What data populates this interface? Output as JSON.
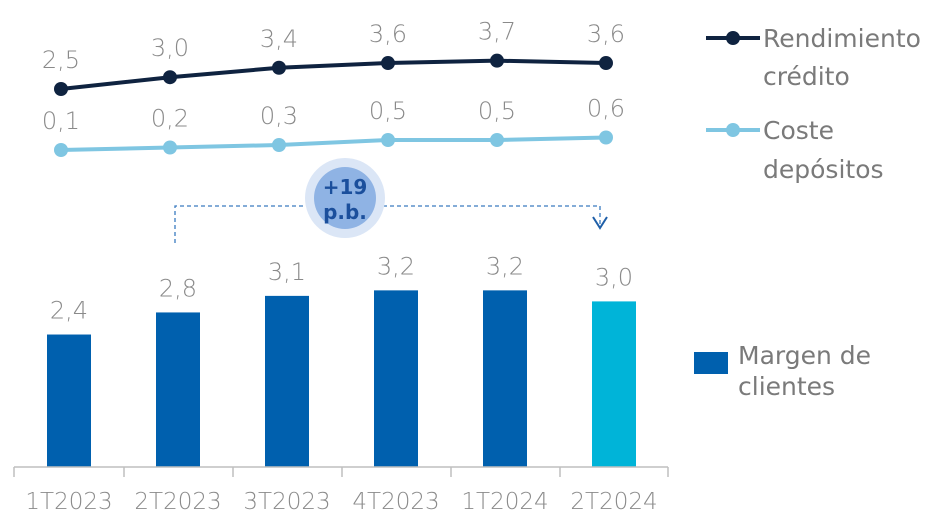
{
  "chart_data": {
    "type": "bar",
    "categories": [
      "1T2023",
      "2T2023",
      "3T2023",
      "4T2023",
      "1T2024",
      "2T2024"
    ],
    "series": [
      {
        "name": "Rendimiento crédito",
        "type": "line",
        "values": [
          2.5,
          3.0,
          3.4,
          3.6,
          3.7,
          3.6
        ],
        "labels": [
          "2,5",
          "3,0",
          "3,4",
          "3,6",
          "3,7",
          "3,6"
        ],
        "color": "#0f2340"
      },
      {
        "name": "Coste depósitos",
        "type": "line",
        "values": [
          0.1,
          0.2,
          0.3,
          0.5,
          0.5,
          0.6
        ],
        "labels": [
          "0,1",
          "0,2",
          "0,3",
          "0,5",
          "0,5",
          "0,6"
        ],
        "color": "#7fc6e2"
      },
      {
        "name": "Margen de clientes",
        "type": "bar",
        "values": [
          2.4,
          2.8,
          3.1,
          3.2,
          3.2,
          3.0
        ],
        "labels": [
          "2,4",
          "2,8",
          "3,1",
          "3,2",
          "3,2",
          "3,0"
        ],
        "color": "#0060ae",
        "highlight_color": "#00b4d8"
      }
    ],
    "annotation": {
      "line1": "+19",
      "line2": "p.b."
    },
    "legend": {
      "line1": [
        "Rendimiento",
        "crédito"
      ],
      "line2": [
        "Coste",
        "depósitos"
      ],
      "bar": [
        "Margen de",
        "clientes"
      ]
    },
    "legend_placement": "right",
    "grid": false
  }
}
